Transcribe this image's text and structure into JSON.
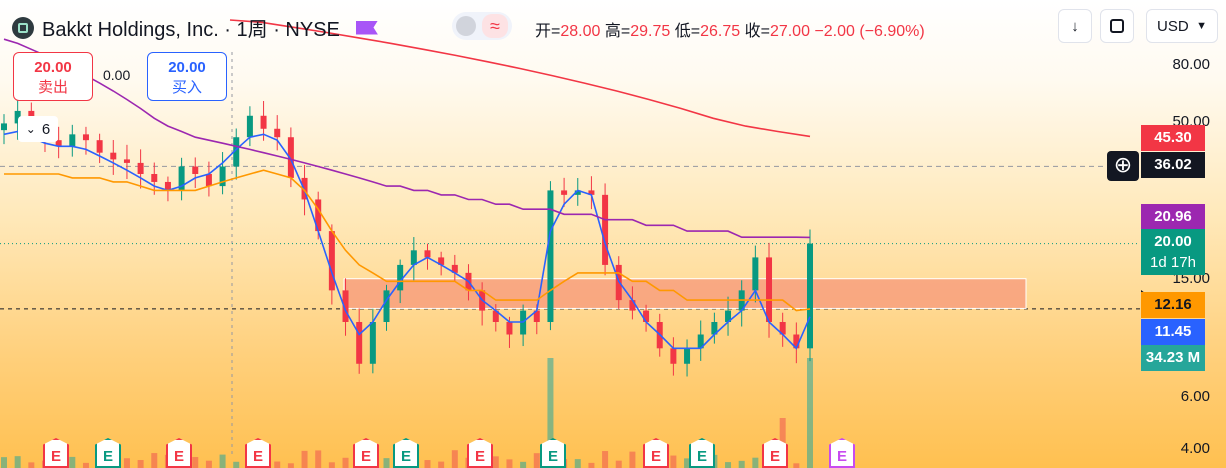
{
  "header": {
    "symbol_title": "Bakkt Holdings, Inc. · 1周 · NYSE",
    "ohlc": {
      "open_label": "开=",
      "open": "28.00",
      "high_label": "高=",
      "high": "29.75",
      "low_label": "低=",
      "low": "26.75",
      "close_label": "收=",
      "close": "27.00",
      "change": "−2.00 (−6.90%)"
    },
    "currency": "USD",
    "wave_glyph": "≈"
  },
  "trade": {
    "sell_price": "20.00",
    "sell_label": "卖出",
    "spread": "0.00",
    "buy_price": "20.00",
    "buy_label": "买入"
  },
  "indicators_collapse": {
    "count": "6"
  },
  "price_axis": {
    "ticks": [
      "80.00",
      "50.00",
      "15.00",
      "6.00",
      "4.00"
    ]
  },
  "price_tags": {
    "ma_red": "45.30",
    "crosshair": "36.02",
    "ma_purple": "20.96",
    "last_price": "20.00",
    "countdown": "1d 17h",
    "ma_orange": "12.16",
    "ma_blue": "11.45",
    "volume": "34.23 M"
  },
  "colors": {
    "up": "#089981",
    "down": "#f23645",
    "ma_blue": "#2962ff",
    "ma_orange": "#ff9800",
    "ma_purple": "#9c27b0",
    "ma_red": "#f23645",
    "zone": "#f7977a"
  },
  "events": [
    {
      "type": "E",
      "color": "red"
    },
    {
      "type": "E",
      "color": "green"
    },
    {
      "type": "E",
      "color": "red"
    },
    {
      "type": "E",
      "color": "red"
    },
    {
      "type": "E",
      "color": "red"
    },
    {
      "type": "E",
      "color": "green"
    },
    {
      "type": "E",
      "color": "red"
    },
    {
      "type": "E",
      "color": "green"
    },
    {
      "type": "E",
      "color": "red"
    },
    {
      "type": "E",
      "color": "green"
    },
    {
      "type": "E",
      "color": "red"
    },
    {
      "type": "E",
      "color": "purple"
    }
  ],
  "chart_data": {
    "type": "candlestick",
    "title": "Bakkt Holdings, Inc. · 1周 · NYSE",
    "scale": "log",
    "ylim": [
      3.9,
      110
    ],
    "support_zone": [
      12.2,
      15.3
    ],
    "series": [
      {
        "name": "close",
        "values": [
          50,
          55,
          48,
          44,
          42,
          46,
          44,
          40,
          38,
          37,
          34,
          32,
          30,
          36,
          34,
          31,
          36,
          45,
          53,
          48,
          45,
          33,
          28,
          22,
          14,
          11,
          8,
          11,
          14,
          17,
          19,
          18,
          17,
          16,
          14,
          12,
          11,
          10,
          12,
          11,
          30,
          29,
          30,
          29,
          17,
          13,
          12,
          11,
          9,
          8,
          9,
          10,
          11,
          12,
          14,
          18,
          11,
          10,
          9,
          20
        ]
      },
      {
        "name": "MA-blue",
        "values": [
          46,
          47,
          45,
          43,
          42,
          42,
          41,
          39,
          37,
          35,
          33,
          31,
          30,
          31,
          33,
          34,
          37,
          41,
          45,
          46,
          44,
          38,
          30,
          22,
          16,
          12,
          10,
          11,
          13,
          15,
          17,
          18,
          17,
          16,
          15,
          13,
          12,
          11,
          11,
          12,
          22,
          27,
          30,
          29,
          20,
          15,
          13,
          11,
          10,
          9,
          9,
          9,
          10,
          11,
          12,
          14,
          11,
          10,
          9,
          11.45
        ]
      },
      {
        "name": "MA-orange",
        "values": [
          34,
          34,
          34,
          34,
          34,
          33,
          33,
          33,
          32,
          32,
          31,
          30,
          30,
          30,
          30,
          31,
          32,
          33,
          34,
          35,
          34,
          33,
          30,
          26,
          22,
          19,
          17,
          16,
          15,
          15,
          15,
          15,
          15,
          15,
          14,
          14,
          13,
          13,
          13,
          13,
          14,
          15,
          16,
          16,
          16,
          16,
          15,
          15,
          14,
          14,
          13,
          13,
          13,
          13,
          13,
          13,
          13,
          13,
          12,
          12.16
        ]
      },
      {
        "name": "MA-purple",
        "values": [
          95,
          92,
          88,
          84,
          80,
          76,
          72,
          68,
          64,
          60,
          56,
          52,
          49,
          47,
          45,
          44,
          43,
          42,
          41,
          40,
          39,
          38,
          37,
          36,
          35,
          34,
          33,
          32,
          31,
          31,
          30,
          30,
          29,
          29,
          28,
          28,
          27,
          27,
          26,
          26,
          26,
          25,
          25,
          25,
          24,
          24,
          24,
          23,
          23,
          23,
          22,
          22,
          22,
          22,
          21,
          21,
          21,
          21,
          21,
          20.96
        ]
      },
      {
        "name": "MA-red",
        "values": [
          110,
          108,
          104,
          100,
          96,
          92,
          88,
          84,
          80,
          76,
          72,
          68,
          64,
          60,
          56,
          52,
          49,
          47,
          45.3
        ]
      }
    ]
  }
}
